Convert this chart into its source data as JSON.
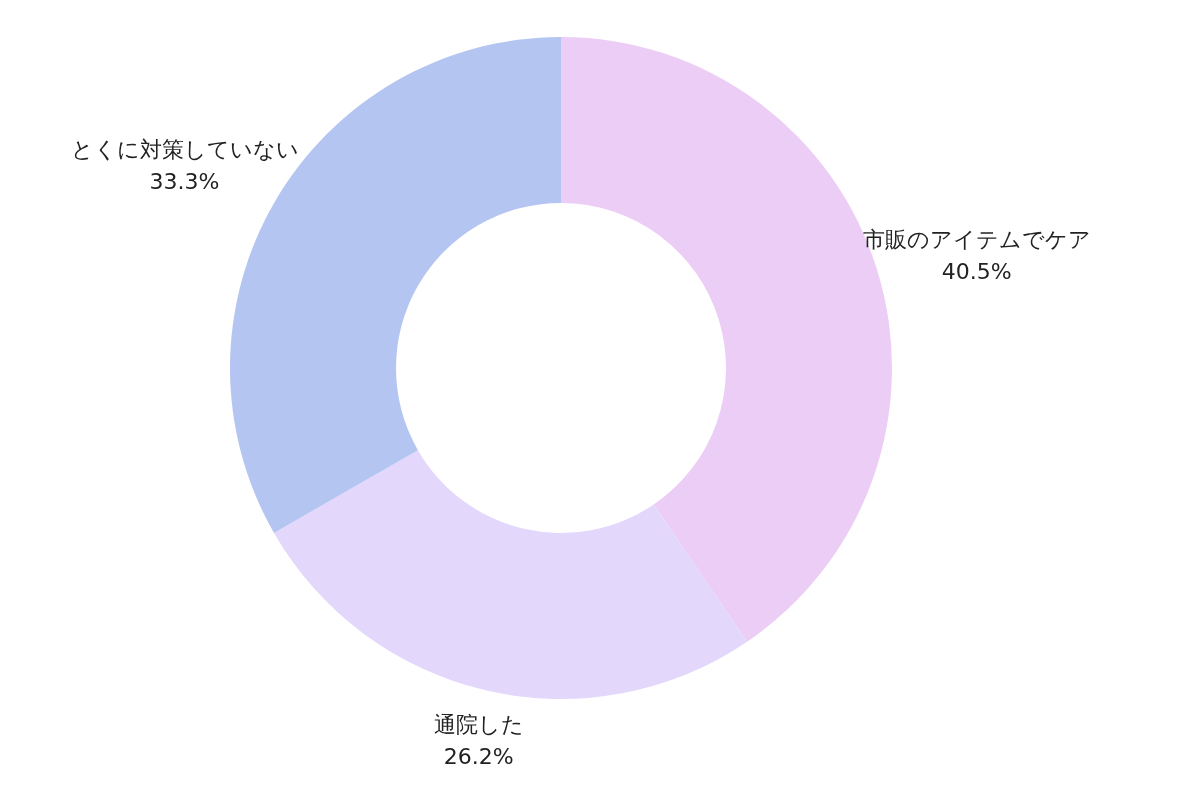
{
  "chart_data": {
    "type": "donut",
    "categories": [
      "市販のアイテムでケア",
      "通院した",
      "とくに対策していない"
    ],
    "values": [
      40.5,
      26.2,
      33.3
    ],
    "value_labels": [
      "40.5%",
      "26.2%",
      "33.3%"
    ],
    "colors": [
      "#ebcdf5",
      "#e3d7fc",
      "#b4c5f2"
    ]
  }
}
